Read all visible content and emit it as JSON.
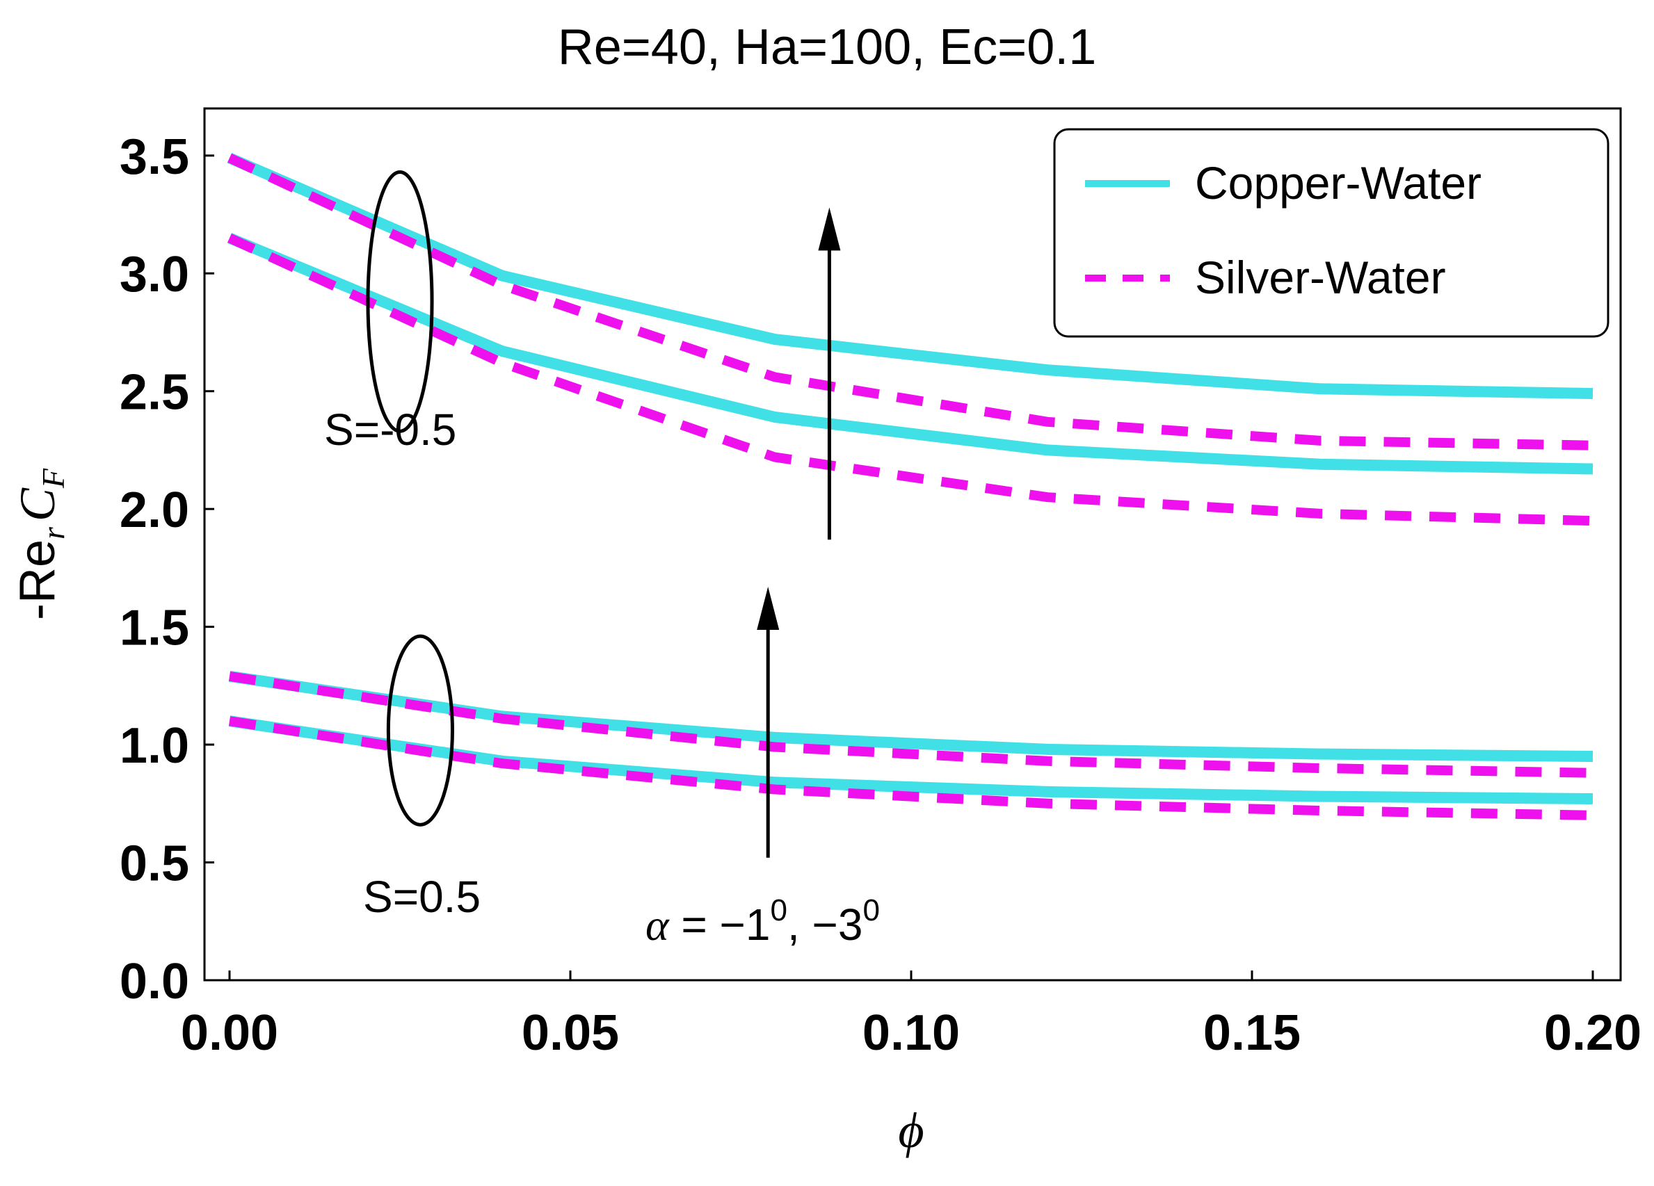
{
  "chart_data": {
    "type": "line",
    "title": "Re=40, Ha=100, Ec=0.1",
    "xlabel": "ϕ",
    "ylabel": {
      "prefix": "-Re",
      "sub_r": "r",
      "main": "C",
      "sub_f": "F"
    },
    "xlim": [
      0.0,
      0.2
    ],
    "ylim": [
      0.0,
      3.7
    ],
    "x_ticks": [
      "0.00",
      "0.05",
      "0.10",
      "0.15",
      "0.20"
    ],
    "x_tick_values": [
      0.0,
      0.05,
      0.1,
      0.15,
      0.2
    ],
    "y_ticks": [
      "0.0",
      "0.5",
      "1.0",
      "1.5",
      "2.0",
      "2.5",
      "3.0",
      "3.5"
    ],
    "y_tick_values": [
      0.0,
      0.5,
      1.0,
      1.5,
      2.0,
      2.5,
      3.0,
      3.5
    ],
    "x": [
      0.0,
      0.04,
      0.08,
      0.12,
      0.16,
      0.2
    ],
    "series": [
      {
        "name": "Copper-Water",
        "group": "S=-0.5, α=-1°",
        "style": "solid",
        "color": "#40e0e6",
        "values": [
          3.15,
          2.67,
          2.39,
          2.25,
          2.19,
          2.17
        ]
      },
      {
        "name": "Copper-Water",
        "group": "S=-0.5, α=-3°",
        "style": "solid",
        "color": "#40e0e6",
        "values": [
          3.49,
          2.99,
          2.72,
          2.59,
          2.51,
          2.49
        ]
      },
      {
        "name": "Silver-Water",
        "group": "S=-0.5, α=-1°",
        "style": "dashed",
        "color": "#ee11ee",
        "values": [
          3.15,
          2.62,
          2.22,
          2.05,
          1.98,
          1.95
        ]
      },
      {
        "name": "Silver-Water",
        "group": "S=-0.5, α=-3°",
        "style": "dashed",
        "color": "#ee11ee",
        "values": [
          3.49,
          2.95,
          2.56,
          2.37,
          2.29,
          2.27
        ]
      },
      {
        "name": "Copper-Water",
        "group": "S=0.5, α=-1°",
        "style": "solid",
        "color": "#40e0e6",
        "values": [
          1.1,
          0.93,
          0.84,
          0.8,
          0.78,
          0.77
        ]
      },
      {
        "name": "Copper-Water",
        "group": "S=0.5, α=-3°",
        "style": "solid",
        "color": "#40e0e6",
        "values": [
          1.29,
          1.12,
          1.03,
          0.98,
          0.96,
          0.95
        ]
      },
      {
        "name": "Silver-Water",
        "group": "S=0.5, α=-1°",
        "style": "dashed",
        "color": "#ee11ee",
        "values": [
          1.1,
          0.92,
          0.81,
          0.75,
          0.72,
          0.7
        ]
      },
      {
        "name": "Silver-Water",
        "group": "S=0.5, α=-3°",
        "style": "dashed",
        "color": "#ee11ee",
        "values": [
          1.29,
          1.11,
          0.99,
          0.93,
          0.9,
          0.88
        ]
      }
    ],
    "legend": {
      "position": "top-right",
      "entries": [
        {
          "label": "Copper-Water",
          "style": "solid",
          "color": "#40e0e6"
        },
        {
          "label": "Silver-Water",
          "style": "dashed",
          "color": "#ee11ee"
        }
      ]
    },
    "annotations": {
      "s_neg": "S=-0.5",
      "s_pos": "S=0.5",
      "alpha_sym": "α",
      "alpha_eq": " = −1",
      "alpha_sup1": "0",
      "alpha_mid": ", −3",
      "alpha_sup2": "0"
    },
    "arrows": [
      {
        "x": 0.088,
        "y_from": 1.87,
        "y_to": 3.28
      },
      {
        "x": 0.079,
        "y_from": 0.52,
        "y_to": 1.67
      }
    ],
    "ellipses": [
      {
        "label": "S=-0.5",
        "cx": 0.025,
        "cy": 2.88,
        "rx": 0.0047,
        "ry": 0.55
      },
      {
        "label": "S=0.5",
        "cx": 0.028,
        "cy": 1.06,
        "rx": 0.0047,
        "ry": 0.4
      }
    ],
    "grid": false
  }
}
